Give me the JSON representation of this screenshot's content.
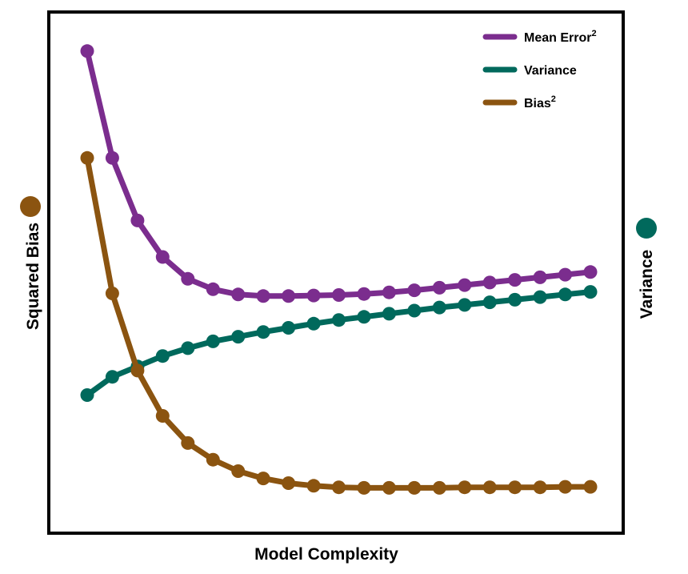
{
  "chart_data": {
    "type": "line",
    "xlabel": "Model Complexity",
    "ylabel_left": "Squared Bias",
    "ylabel_right": "Variance",
    "ylim": [
      0,
      1
    ],
    "x": [
      1,
      2,
      3,
      4,
      5,
      6,
      7,
      8,
      9,
      10,
      11,
      12,
      13,
      14,
      15,
      16,
      17,
      18,
      19,
      20,
      21
    ],
    "legend_position": "top-right",
    "series": [
      {
        "name": "Mean Error",
        "superscript": "2",
        "color": "#7b2d8e",
        "values": [
          0.925,
          0.72,
          0.6,
          0.53,
          0.488,
          0.468,
          0.458,
          0.455,
          0.455,
          0.456,
          0.457,
          0.459,
          0.462,
          0.466,
          0.471,
          0.476,
          0.481,
          0.486,
          0.491,
          0.496,
          0.501
        ]
      },
      {
        "name": "Variance",
        "superscript": "",
        "color": "#00695c",
        "values": [
          0.265,
          0.3,
          0.32,
          0.34,
          0.355,
          0.368,
          0.377,
          0.386,
          0.394,
          0.402,
          0.409,
          0.415,
          0.421,
          0.427,
          0.433,
          0.438,
          0.443,
          0.448,
          0.453,
          0.458,
          0.463
        ]
      },
      {
        "name": "Bias",
        "superscript": "2",
        "color": "#8b5410",
        "values": [
          0.72,
          0.46,
          0.312,
          0.225,
          0.173,
          0.141,
          0.119,
          0.105,
          0.096,
          0.091,
          0.088,
          0.087,
          0.087,
          0.087,
          0.087,
          0.088,
          0.088,
          0.088,
          0.088,
          0.089,
          0.089
        ]
      }
    ],
    "axis_markers": {
      "left_color": "#8b5410",
      "right_color": "#00695c"
    }
  }
}
